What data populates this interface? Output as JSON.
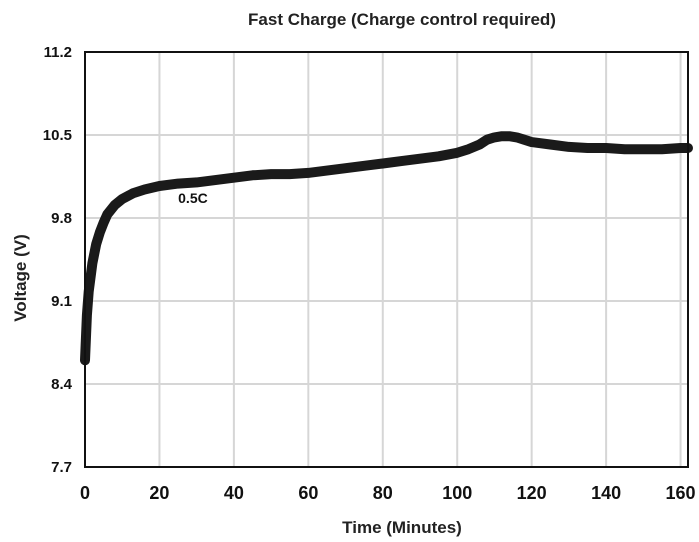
{
  "chart_data": {
    "type": "line",
    "title": "Fast Charge (Charge control required)",
    "xlabel": "Time (Minutes)",
    "ylabel": "Voltage (V)",
    "xlim": [
      0,
      162
    ],
    "ylim": [
      7.7,
      11.2
    ],
    "xticks": [
      0,
      20,
      40,
      60,
      80,
      100,
      120,
      140,
      160
    ],
    "yticks": [
      7.7,
      8.4,
      9.1,
      9.8,
      10.5,
      11.2
    ],
    "ytick_labels": [
      "7.7",
      "8.4",
      "9.1",
      "9.8",
      "10.5",
      "11.2"
    ],
    "xtick_labels": [
      "0",
      "20",
      "40",
      "60",
      "80",
      "100",
      "120",
      "140",
      "160"
    ],
    "grid": true,
    "annotations": [
      {
        "text": "0.5C",
        "x": 29,
        "y": 9.97
      }
    ],
    "series": [
      {
        "color": "#1a1a1a",
        "x": [
          0,
          0.5,
          1,
          2,
          3,
          4,
          5,
          6,
          8,
          10,
          13,
          16,
          20,
          25,
          30,
          35,
          40,
          45,
          50,
          55,
          60,
          65,
          70,
          75,
          80,
          85,
          90,
          95,
          100,
          103,
          106,
          108,
          110,
          112,
          114,
          116,
          118,
          120,
          125,
          130,
          135,
          140,
          145,
          150,
          155,
          160,
          162
        ],
        "y": [
          8.6,
          8.98,
          9.18,
          9.42,
          9.58,
          9.68,
          9.76,
          9.83,
          9.91,
          9.96,
          10.01,
          10.04,
          10.07,
          10.09,
          10.1,
          10.12,
          10.14,
          10.16,
          10.17,
          10.17,
          10.18,
          10.2,
          10.22,
          10.24,
          10.26,
          10.28,
          10.3,
          10.32,
          10.35,
          10.38,
          10.42,
          10.46,
          10.48,
          10.49,
          10.49,
          10.48,
          10.46,
          10.44,
          10.42,
          10.4,
          10.39,
          10.39,
          10.38,
          10.38,
          10.38,
          10.39,
          10.39
        ]
      }
    ]
  }
}
